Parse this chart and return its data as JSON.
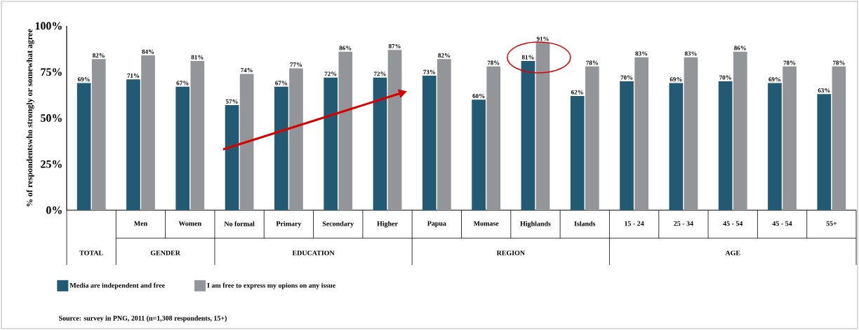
{
  "chart_data": {
    "type": "bar",
    "ylabel": "% of respondentswho strongly or somewhat agree",
    "categories": [
      null,
      "Men",
      "Women",
      "No formal",
      "Primary",
      "Secondary",
      "Higher",
      "Papua",
      "Momase",
      "Highlands",
      "Islands",
      "15 - 24",
      "25 - 34",
      "45 - 54",
      "45 - 54",
      "55+"
    ],
    "series": [
      {
        "name": "Media are independent and free",
        "color": "#235a73",
        "values": [
          69,
          71,
          67,
          57,
          67,
          72,
          72,
          73,
          60,
          81,
          62,
          70,
          69,
          70,
          69,
          63
        ],
        "value_labels": [
          "69%",
          "71%",
          "67%",
          "57%",
          "67%",
          "72%",
          "72%",
          "73%",
          "60%",
          "81%",
          "62%",
          "70%",
          "69%",
          "70%",
          "69%",
          "63%"
        ]
      },
      {
        "name": "I am free to express my opions on any issue",
        "color": "#939598",
        "values": [
          82,
          84,
          81,
          74,
          77,
          86,
          87,
          82,
          78,
          91,
          78,
          83,
          83,
          86,
          78,
          78
        ],
        "value_labels": [
          "82%",
          "84%",
          "81%",
          "74%",
          "77%",
          "86%",
          "87%",
          "82%",
          "78%",
          "91%",
          "78%",
          "83%",
          "83%",
          "86%",
          "78%",
          "78%"
        ]
      }
    ],
    "ylim": [
      0,
      100
    ],
    "yticks": [
      {
        "value": 0,
        "label": "0%"
      },
      {
        "value": 25,
        "label": "25%"
      },
      {
        "value": 50,
        "label": "50%"
      },
      {
        "value": 75,
        "label": "75%"
      },
      {
        "value": 100,
        "label": "100%"
      }
    ],
    "annotations": [
      "TOTAL",
      "GENDER",
      "EDUCATION",
      "REGION",
      "AGE",
      "Source: survey in PNG, 2011 (n=1,308 respondents, 15+)"
    ],
    "legend": "bottom left",
    "grid": false
  }
}
